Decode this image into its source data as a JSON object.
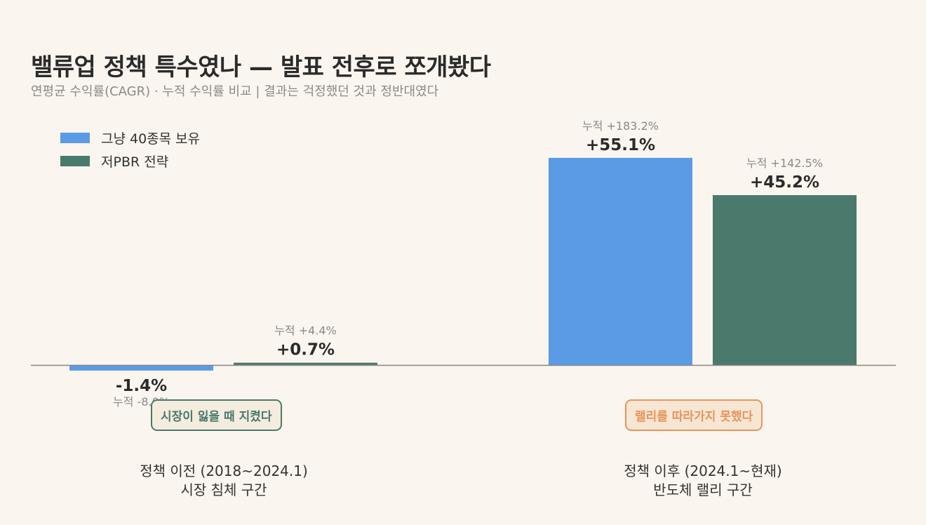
{
  "title": "밸류업 정책 특수였나 — 발표 전후로 쪼개봤다",
  "subtitle": "연평균 수익률(CAGR) · 누적 수익률 비교  |  결과는 걱정했던 것과 정반대였다",
  "legend": [
    {
      "label": "그냥 40종목 보유",
      "color": "#5b9be6"
    },
    {
      "label": "저PBR 전략",
      "color": "#4a7a6b"
    }
  ],
  "annotations": [
    {
      "text": "시장이 잃을 때 지켰다",
      "color": "#4a7a6b"
    },
    {
      "text": "랠리를 따라가지 못했다",
      "color": "#e8955a"
    }
  ],
  "periods": [
    {
      "line1": "정책 이전 (2018~2024.1)",
      "line2": "시장 침체 구간"
    },
    {
      "line1": "정책 이후 (2024.1~현재)",
      "line2": "반도체 랠리 구간"
    }
  ],
  "chart_data": {
    "type": "bar",
    "categories": [
      "정책 이전 (2018~2024.1)",
      "정책 이후 (2024.1~현재)"
    ],
    "series": [
      {
        "name": "그냥 40종목 보유",
        "color": "#5b9be6",
        "values": [
          -1.4,
          55.1
        ],
        "labels": [
          "-1.4%",
          "+55.1%"
        ],
        "cumulative": [
          "누적 -8.0%",
          "누적 +183.2%"
        ]
      },
      {
        "name": "저PBR 전략",
        "color": "#4a7a6b",
        "values": [
          0.7,
          45.2
        ],
        "labels": [
          "+0.7%",
          "+45.2%"
        ],
        "cumulative": [
          "누적 +4.4%",
          "누적 +142.5%"
        ]
      }
    ],
    "ylabel": "",
    "xlabel": "",
    "ylim": [
      -5,
      60
    ],
    "grid": false,
    "legend_position": "top-left"
  }
}
